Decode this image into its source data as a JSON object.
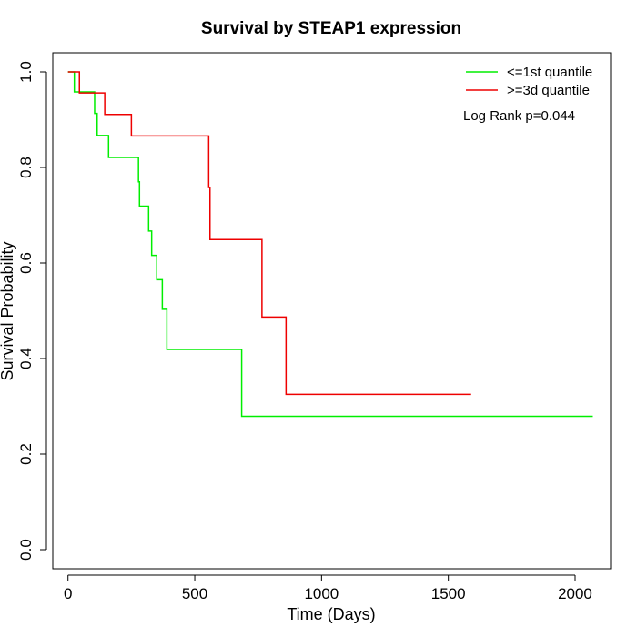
{
  "chart_data": {
    "type": "line",
    "subtype": "kaplan-meier step",
    "title": "Survival by STEAP1 expression",
    "xlabel": "Time (Days)",
    "ylabel": "Survival Probability",
    "xlim": [
      -60,
      2140
    ],
    "ylim": [
      -0.04,
      1.04
    ],
    "x_ticks": [
      0,
      500,
      1000,
      1500,
      2000
    ],
    "y_ticks": [
      0.0,
      0.2,
      0.4,
      0.6,
      0.8,
      1.0
    ],
    "x_tick_labels": [
      "0",
      "500",
      "1000",
      "1500",
      "2000"
    ],
    "y_tick_labels": [
      "0.0",
      "0.2",
      "0.4",
      "0.6",
      "0.8",
      "1.0"
    ],
    "grid": false,
    "legend_position": "top-right",
    "annotation": "Log Rank p=0.044",
    "series": [
      {
        "name": "<=1st quantile",
        "color": "#00ee00",
        "steps": [
          [
            0,
            1.0
          ],
          [
            25,
            0.958
          ],
          [
            105,
            0.913
          ],
          [
            115,
            0.867
          ],
          [
            160,
            0.821
          ],
          [
            278,
            0.77
          ],
          [
            282,
            0.719
          ],
          [
            318,
            0.667
          ],
          [
            330,
            0.616
          ],
          [
            350,
            0.565
          ],
          [
            372,
            0.503
          ],
          [
            390,
            0.419
          ],
          [
            685,
            0.279
          ],
          [
            2070,
            0.279
          ]
        ]
      },
      {
        "name": ">=3d quantile",
        "color": "#ee0000",
        "steps": [
          [
            0,
            1.0
          ],
          [
            45,
            0.956
          ],
          [
            145,
            0.911
          ],
          [
            250,
            0.866
          ],
          [
            555,
            0.758
          ],
          [
            560,
            0.649
          ],
          [
            765,
            0.487
          ],
          [
            860,
            0.325
          ],
          [
            1590,
            0.325
          ]
        ]
      }
    ]
  }
}
